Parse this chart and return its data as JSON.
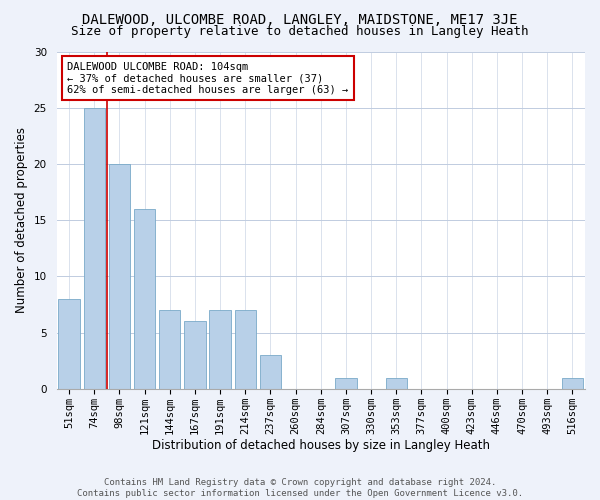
{
  "title": "DALEWOOD, ULCOMBE ROAD, LANGLEY, MAIDSTONE, ME17 3JE",
  "subtitle": "Size of property relative to detached houses in Langley Heath",
  "xlabel": "Distribution of detached houses by size in Langley Heath",
  "ylabel": "Number of detached properties",
  "categories": [
    "51sqm",
    "74sqm",
    "98sqm",
    "121sqm",
    "144sqm",
    "167sqm",
    "191sqm",
    "214sqm",
    "237sqm",
    "260sqm",
    "284sqm",
    "307sqm",
    "330sqm",
    "353sqm",
    "377sqm",
    "400sqm",
    "423sqm",
    "446sqm",
    "470sqm",
    "493sqm",
    "516sqm"
  ],
  "values": [
    8,
    25,
    20,
    16,
    7,
    6,
    7,
    7,
    3,
    0,
    0,
    1,
    0,
    1,
    0,
    0,
    0,
    0,
    0,
    0,
    1
  ],
  "bar_color": "#b8d0e8",
  "bar_edge_color": "#7aaac8",
  "reference_line_color": "#cc0000",
  "annotation_text": "DALEWOOD ULCOMBE ROAD: 104sqm\n← 37% of detached houses are smaller (37)\n62% of semi-detached houses are larger (63) →",
  "annotation_box_edge_color": "#cc0000",
  "ylim": [
    0,
    30
  ],
  "yticks": [
    0,
    5,
    10,
    15,
    20,
    25,
    30
  ],
  "footer_line1": "Contains HM Land Registry data © Crown copyright and database right 2024.",
  "footer_line2": "Contains public sector information licensed under the Open Government Licence v3.0.",
  "bg_color": "#eef2fa",
  "plot_bg_color": "#ffffff",
  "title_fontsize": 10,
  "subtitle_fontsize": 9,
  "axis_label_fontsize": 8.5,
  "tick_fontsize": 7.5,
  "annotation_fontsize": 7.5,
  "footer_fontsize": 6.5
}
